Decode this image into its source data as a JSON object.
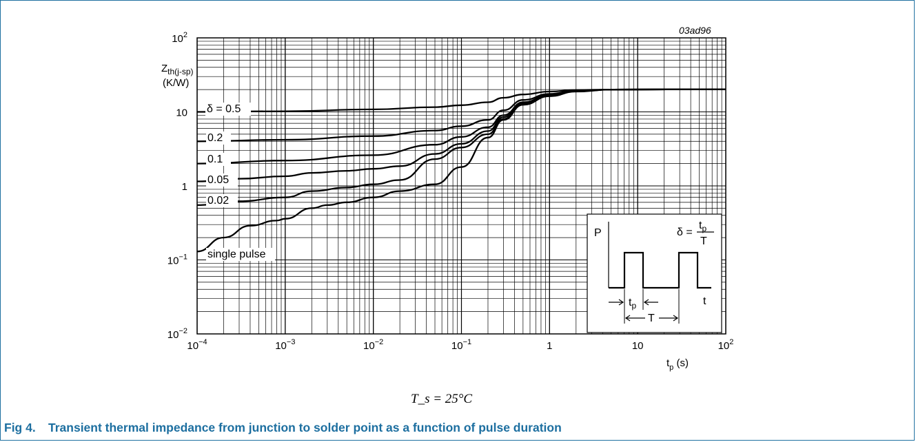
{
  "figure_id": "03ad96",
  "condition_text": "T_s = 25°C",
  "caption": {
    "number": "Fig 4.",
    "text": "Transient thermal impedance from junction to solder point as a function of pulse duration"
  },
  "chart_data": {
    "type": "line",
    "xscale": "log",
    "yscale": "log",
    "xlim": [
      0.0001,
      100
    ],
    "ylim": [
      0.01,
      100
    ],
    "grid": true,
    "x_ticks": [
      {
        "base": "10",
        "exp": "−4"
      },
      {
        "base": "10",
        "exp": "−3"
      },
      {
        "base": "10",
        "exp": "−2"
      },
      {
        "base": "10",
        "exp": "−1"
      },
      {
        "base": "1",
        "exp": ""
      },
      {
        "base": "10",
        "exp": ""
      },
      {
        "base": "10",
        "exp": "2"
      }
    ],
    "y_ticks": [
      {
        "base": "10",
        "exp": "−2"
      },
      {
        "base": "10",
        "exp": "−1"
      },
      {
        "base": "1",
        "exp": ""
      },
      {
        "base": "10",
        "exp": ""
      },
      {
        "base": "10",
        "exp": "2"
      }
    ],
    "xlabel": {
      "main": "t",
      "sub": "p",
      "unit": " (s)"
    },
    "ylabel": {
      "main": "Z",
      "sub": "th(j-sp)",
      "unit": "(K/W)"
    },
    "series": [
      {
        "name": "δ = 0.5",
        "points": [
          [
            0.0001,
            10.0
          ],
          [
            0.001,
            10.2
          ],
          [
            0.01,
            10.8
          ],
          [
            0.05,
            11.6
          ],
          [
            0.1,
            12.3
          ],
          [
            0.2,
            13.5
          ],
          [
            0.3,
            15.5
          ],
          [
            0.5,
            17.2
          ],
          [
            1,
            18.8
          ],
          [
            2,
            19.7
          ],
          [
            5,
            20.0
          ],
          [
            100,
            20.2
          ]
        ]
      },
      {
        "name": "0.2",
        "points": [
          [
            0.0001,
            4.0
          ],
          [
            0.001,
            4.2
          ],
          [
            0.01,
            4.7
          ],
          [
            0.05,
            5.6
          ],
          [
            0.1,
            6.4
          ],
          [
            0.2,
            7.8
          ],
          [
            0.3,
            10.5
          ],
          [
            0.5,
            14.5
          ],
          [
            1,
            17.5
          ],
          [
            2,
            19.4
          ],
          [
            5,
            20.0
          ],
          [
            100,
            20.2
          ]
        ]
      },
      {
        "name": "0.1",
        "points": [
          [
            0.0001,
            2.0
          ],
          [
            0.001,
            2.2
          ],
          [
            0.01,
            2.6
          ],
          [
            0.05,
            3.6
          ],
          [
            0.1,
            4.6
          ],
          [
            0.2,
            6.2
          ],
          [
            0.3,
            9.0
          ],
          [
            0.5,
            13.5
          ],
          [
            1,
            17.0
          ],
          [
            2,
            19.2
          ],
          [
            5,
            20.0
          ],
          [
            100,
            20.2
          ]
        ]
      },
      {
        "name": "0.05",
        "points": [
          [
            0.0001,
            1.15
          ],
          [
            0.0003,
            1.25
          ],
          [
            0.001,
            1.35
          ],
          [
            0.002,
            1.5
          ],
          [
            0.005,
            1.6
          ],
          [
            0.01,
            1.7
          ],
          [
            0.02,
            1.85
          ],
          [
            0.05,
            2.7
          ],
          [
            0.1,
            3.7
          ],
          [
            0.2,
            5.5
          ],
          [
            0.3,
            8.5
          ],
          [
            0.5,
            13.0
          ],
          [
            1,
            16.8
          ],
          [
            2,
            19.0
          ],
          [
            5,
            20.0
          ],
          [
            100,
            20.2
          ]
        ]
      },
      {
        "name": "0.02",
        "points": [
          [
            0.0001,
            0.55
          ],
          [
            0.0003,
            0.62
          ],
          [
            0.001,
            0.7
          ],
          [
            0.002,
            0.85
          ],
          [
            0.005,
            0.95
          ],
          [
            0.01,
            1.05
          ],
          [
            0.02,
            1.2
          ],
          [
            0.05,
            2.3
          ],
          [
            0.1,
            3.3
          ],
          [
            0.2,
            5.0
          ],
          [
            0.3,
            8.0
          ],
          [
            0.5,
            12.5
          ],
          [
            1,
            16.5
          ],
          [
            2,
            19.0
          ],
          [
            5,
            20.0
          ],
          [
            100,
            20.2
          ]
        ]
      },
      {
        "name": "single pulse",
        "points": [
          [
            0.0001,
            0.13
          ],
          [
            0.0002,
            0.2
          ],
          [
            0.0004,
            0.29
          ],
          [
            0.0008,
            0.34
          ],
          [
            0.001,
            0.36
          ],
          [
            0.002,
            0.5
          ],
          [
            0.003,
            0.55
          ],
          [
            0.005,
            0.6
          ],
          [
            0.01,
            0.7
          ],
          [
            0.02,
            0.85
          ],
          [
            0.05,
            1.05
          ],
          [
            0.1,
            1.8
          ],
          [
            0.2,
            4.5
          ],
          [
            0.3,
            7.8
          ],
          [
            0.5,
            12.5
          ],
          [
            1,
            16.3
          ],
          [
            2,
            18.8
          ],
          [
            5,
            20.0
          ],
          [
            100,
            20.2
          ]
        ]
      }
    ],
    "inset": {
      "p_label": "P",
      "t_label": "t",
      "tp_label": {
        "main": "t",
        "sub": "p"
      },
      "T_label": "T",
      "formula": {
        "lhs": "δ =",
        "num_main": "t",
        "num_sub": "p",
        "den": "T"
      }
    }
  }
}
